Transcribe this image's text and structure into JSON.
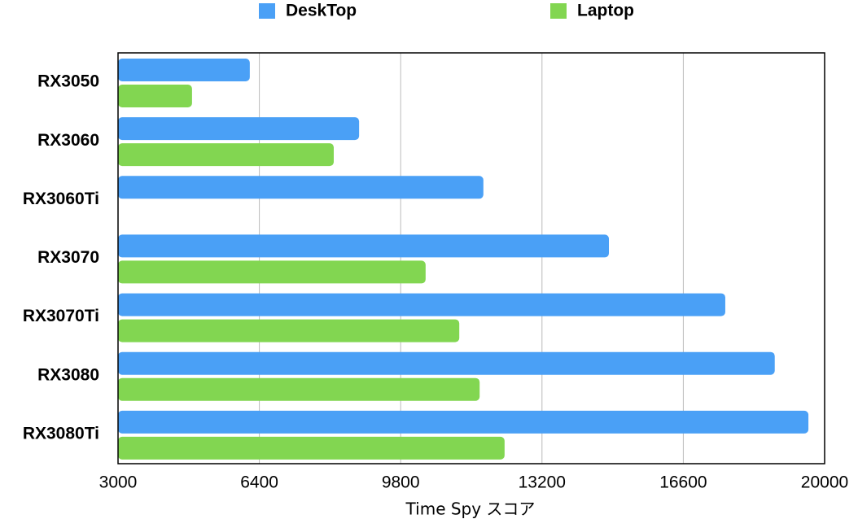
{
  "chart_data": {
    "type": "hbar",
    "categories": [
      "RX3050",
      "RX3060",
      "RX3060Ti",
      "RX3070",
      "RX3070Ti",
      "RX3080",
      "RX3080Ti"
    ],
    "series": [
      {
        "name": "DeskTop",
        "color": "#4aa0f6",
        "values": [
          6170,
          8800,
          11790,
          14810,
          17610,
          18800,
          19610
        ]
      },
      {
        "name": "Laptop",
        "color": "#82d651",
        "values": [
          4780,
          8190,
          null,
          10400,
          11210,
          11700,
          12300
        ]
      }
    ],
    "xlabel": "Time Spy スコア",
    "xlim": [
      3000,
      20000
    ],
    "xticks": [
      3000,
      6400,
      9800,
      13200,
      16600,
      20000
    ],
    "grid": true,
    "legend": "top"
  }
}
